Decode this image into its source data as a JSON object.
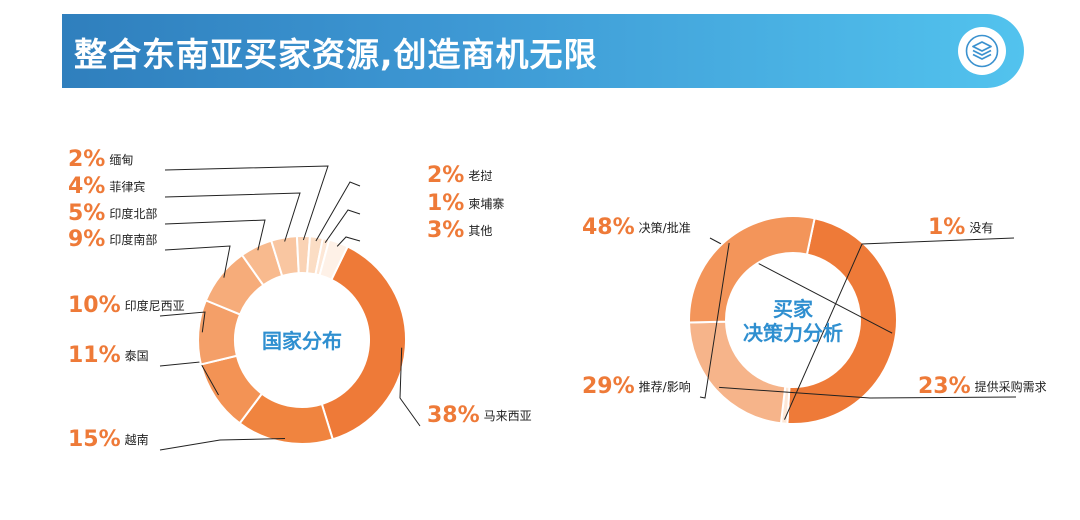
{
  "header": {
    "title": "整合东南亚买家资源,创造商机无限",
    "icon": "stack-layers-icon",
    "gradient_start": "#2f7fbd",
    "gradient_end": "#52c3ee"
  },
  "chart_data": [
    {
      "type": "pie",
      "donut": true,
      "title": "国家分布",
      "categories": [
        "马来西亚",
        "越南",
        "泰国",
        "印度尼西亚",
        "印度南部",
        "印度北部",
        "菲律宾",
        "缅甸",
        "老挝",
        "柬埔寨",
        "其他"
      ],
      "values": [
        38,
        15,
        11,
        10,
        9,
        5,
        4,
        2,
        2,
        1,
        3
      ],
      "colors": [
        "#ee7a38",
        "#f0843f",
        "#f39355",
        "#f49f68",
        "#f6ac7a",
        "#f8ba8e",
        "#f9c6a1",
        "#fad3b5",
        "#fbddc4",
        "#fde7d6",
        "#fef1e7"
      ],
      "label_format": "{value}%"
    },
    {
      "type": "pie",
      "donut": true,
      "title": "买家\n决策力分析",
      "categories": [
        "决策/批准",
        "没有",
        "提供采购需求",
        "推荐/影响"
      ],
      "values": [
        48,
        1,
        23,
        29
      ],
      "colors": [
        "#ee7a38",
        "#fde7d6",
        "#f6b48a",
        "#f3955a"
      ],
      "label_format": "{value}%"
    }
  ]
}
